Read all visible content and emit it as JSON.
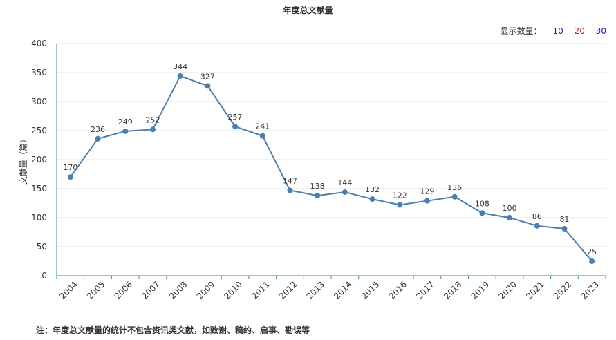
{
  "count_control": {
    "label": "显示数量：",
    "options": [
      {
        "text": "10",
        "color": "#1a1ac8"
      },
      {
        "text": "20",
        "color": "#d42020"
      },
      {
        "text": "30",
        "color": "#1a1ac8"
      }
    ]
  },
  "footnote": "注：年度总文献量的统计不包含资讯类文献，如致谢、稿约、启事、勘误等",
  "colors": {
    "line": "#4a7fb0",
    "axis": "#2f8fa0",
    "grid": "#e0e0e0"
  },
  "chart_data": {
    "type": "line",
    "title": "年度总文献量",
    "ylabel": "文献量（篇）",
    "xlabel": "",
    "ylim": [
      0,
      400
    ],
    "yticks": [
      0,
      50,
      100,
      150,
      200,
      250,
      300,
      350,
      400
    ],
    "grid": true,
    "categories": [
      "2004",
      "2005",
      "2006",
      "2007",
      "2008",
      "2009",
      "2010",
      "2011",
      "2012",
      "2013",
      "2014",
      "2015",
      "2016",
      "2017",
      "2018",
      "2019",
      "2020",
      "2021",
      "2022",
      "2023"
    ],
    "values": [
      170,
      236,
      249,
      252,
      344,
      327,
      257,
      241,
      147,
      138,
      144,
      132,
      122,
      129,
      136,
      108,
      100,
      86,
      81,
      25
    ]
  }
}
